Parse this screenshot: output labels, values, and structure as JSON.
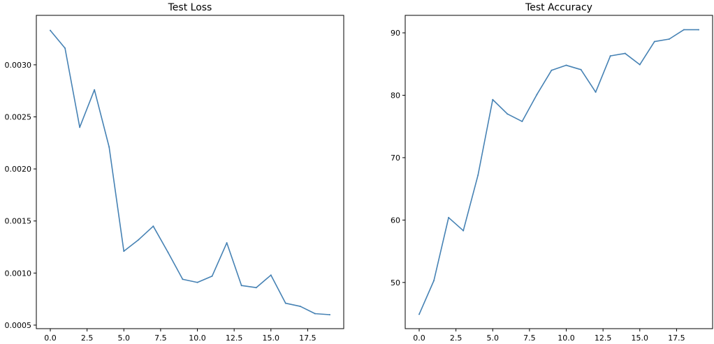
{
  "chart_data": [
    {
      "type": "line",
      "title": "Test Loss",
      "xlabel": "",
      "ylabel": "",
      "xlim": [
        -0.95,
        19.95
      ],
      "ylim": [
        0.000466,
        0.003475
      ],
      "x_ticks": [
        0.0,
        2.5,
        5.0,
        7.5,
        10.0,
        12.5,
        15.0,
        17.5
      ],
      "x_tick_labels": [
        "0.0",
        "2.5",
        "5.0",
        "7.5",
        "10.0",
        "12.5",
        "15.0",
        "17.5"
      ],
      "y_ticks": [
        0.0005,
        0.001,
        0.0015,
        0.002,
        0.0025,
        0.003
      ],
      "y_tick_labels": [
        "0.0005",
        "0.0010",
        "0.0015",
        "0.0020",
        "0.0025",
        "0.0030"
      ],
      "grid": false,
      "color": "#4682b4",
      "x": [
        0,
        1,
        2,
        3,
        4,
        5,
        6,
        7,
        8,
        9,
        10,
        11,
        12,
        13,
        14,
        15,
        16,
        17,
        18,
        19
      ],
      "series": [
        {
          "values": [
            0.00333,
            0.00316,
            0.0024,
            0.00276,
            0.00221,
            0.00121,
            0.00132,
            0.00145,
            0.0012,
            0.00094,
            0.00091,
            0.00097,
            0.00129,
            0.00088,
            0.00086,
            0.00098,
            0.00071,
            0.00068,
            0.00061,
            0.0006
          ]
        }
      ]
    },
    {
      "type": "line",
      "title": "Test Accuracy",
      "xlabel": "",
      "ylabel": "",
      "xlim": [
        -0.95,
        19.95
      ],
      "ylim": [
        42.6,
        92.8
      ],
      "x_ticks": [
        0.0,
        2.5,
        5.0,
        7.5,
        10.0,
        12.5,
        15.0,
        17.5
      ],
      "x_tick_labels": [
        "0.0",
        "2.5",
        "5.0",
        "7.5",
        "10.0",
        "12.5",
        "15.0",
        "17.5"
      ],
      "y_ticks": [
        50,
        60,
        70,
        80,
        90
      ],
      "y_tick_labels": [
        "50",
        "60",
        "70",
        "80",
        "90"
      ],
      "grid": false,
      "color": "#4682b4",
      "x": [
        0,
        1,
        2,
        3,
        4,
        5,
        6,
        7,
        8,
        9,
        10,
        11,
        12,
        13,
        14,
        15,
        16,
        17,
        18,
        19
      ],
      "series": [
        {
          "values": [
            44.9,
            50.3,
            60.4,
            58.3,
            67.2,
            79.3,
            77.0,
            75.8,
            80.1,
            84.0,
            84.8,
            84.1,
            80.5,
            86.3,
            86.7,
            84.9,
            88.6,
            89.0,
            90.5,
            90.5
          ]
        }
      ]
    }
  ]
}
